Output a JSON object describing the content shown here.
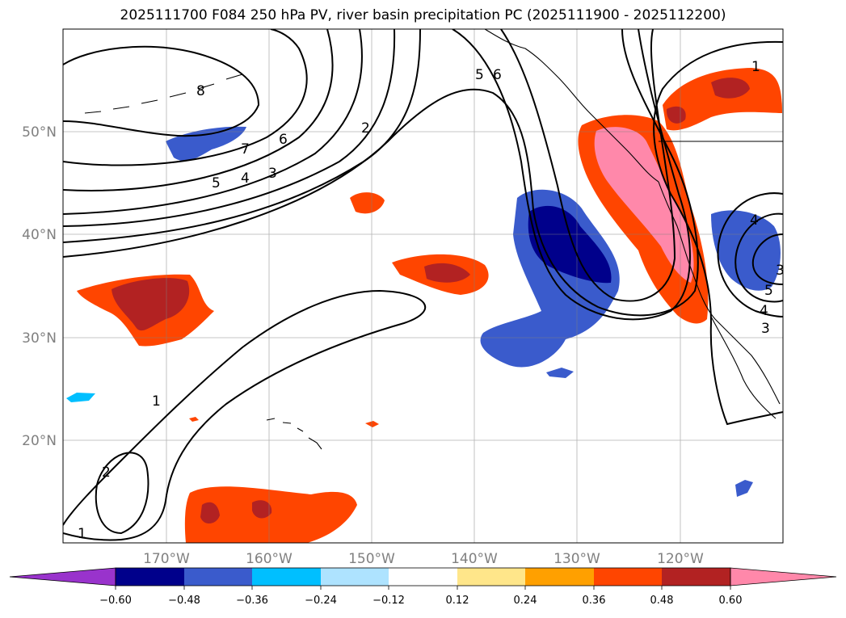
{
  "title": "2025111700 F084 250 hPa PV, river basin precipitation PC (2025111900 - 2025112200)",
  "lat_labels": [
    "50°N",
    "40°N",
    "30°N",
    "20°N"
  ],
  "lon_labels": [
    "170°W",
    "160°W",
    "150°W",
    "140°W",
    "130°W",
    "120°W"
  ],
  "colorbar": {
    "ticks": [
      "−0.60",
      "−0.48",
      "−0.36",
      "−0.24",
      "−0.12",
      "0.12",
      "0.24",
      "0.36",
      "0.48",
      "0.60"
    ],
    "colors": [
      "#9933cc",
      "#00008b",
      "#3a5bcc",
      "#00bfff",
      "#aee3ff",
      "#ffffff",
      "#ffe68a",
      "#ffa000",
      "#ff4500",
      "#b22222",
      "#ff88aa"
    ]
  },
  "contour_labels": [
    "8",
    "7",
    "6",
    "5",
    "4",
    "3",
    "2",
    "5",
    "6",
    "1",
    "1",
    "2",
    "1",
    "4",
    "3",
    "5",
    "4",
    "3"
  ],
  "colors": {
    "pos_dark": "#b22222",
    "pos_red": "#ff4500",
    "pos_orange": "#ffa000",
    "pos_pink": "#ff88aa",
    "neg_dark": "#00008b",
    "neg_blue": "#3a5bcc",
    "neg_cyan": "#00bfff"
  }
}
